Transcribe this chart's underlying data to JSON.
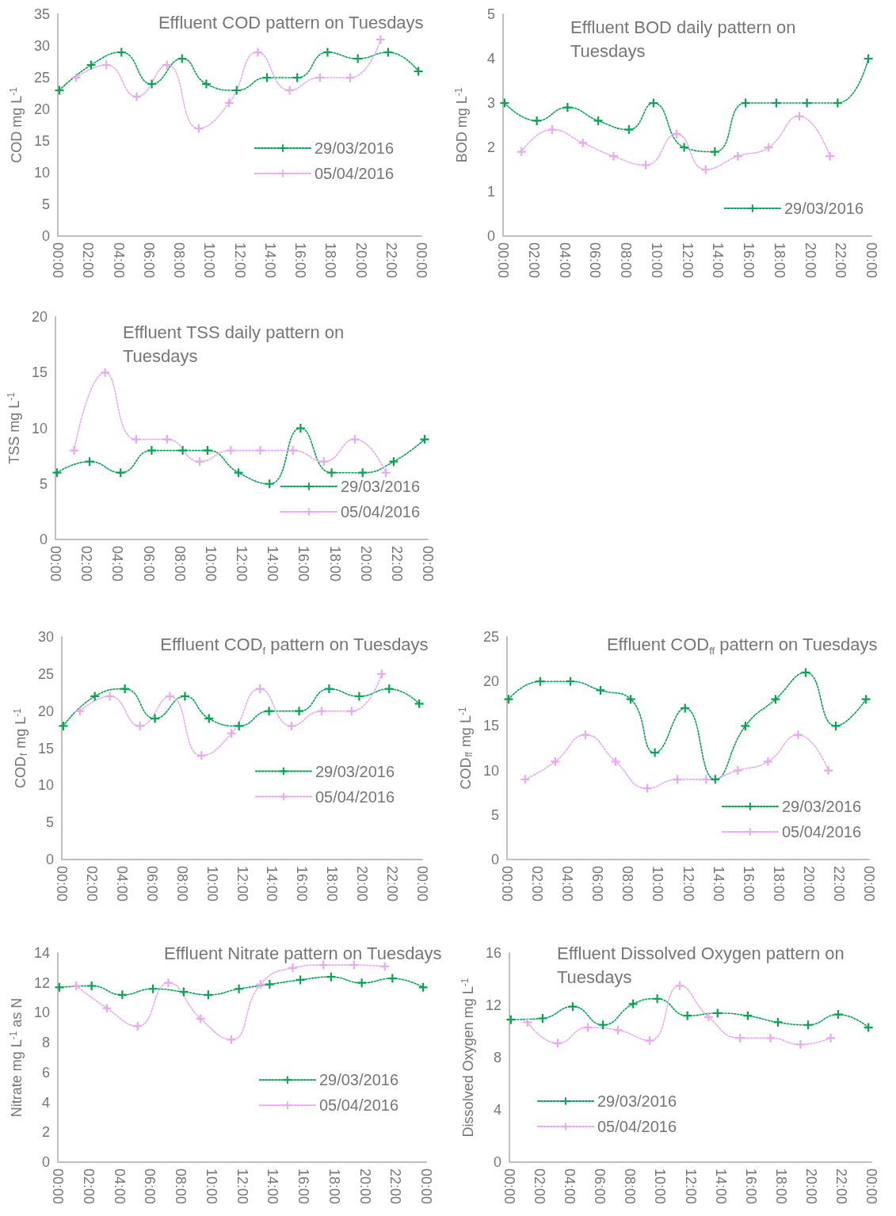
{
  "chart_data": [
    {
      "type": "line",
      "title": "Effluent COD pattern on Tuesdays",
      "ylabel": "COD mg L$^{-1}$",
      "xlim": [
        0,
        24
      ],
      "xticks": [
        {
          "value": 0,
          "label": "00:00"
        },
        {
          "value": 2,
          "label": "02:00"
        },
        {
          "value": 4,
          "label": "04:00"
        },
        {
          "value": 6,
          "label": "06:00"
        },
        {
          "value": 8,
          "label": "08:00"
        },
        {
          "value": 10,
          "label": "10:00"
        },
        {
          "value": 12,
          "label": "12:00"
        },
        {
          "value": 14,
          "label": "14:00"
        },
        {
          "value": 16,
          "label": "16:00"
        },
        {
          "value": 18,
          "label": "18:00"
        },
        {
          "value": 20,
          "label": "20:00"
        },
        {
          "value": 22,
          "label": "22:00"
        },
        {
          "value": 24,
          "label": "00:00"
        }
      ],
      "ylim": [
        0,
        35
      ],
      "yticks": [
        0,
        5,
        10,
        15,
        20,
        25,
        30,
        35
      ],
      "grid": false,
      "legend": "right",
      "marker": "cross",
      "line_style": "dotted",
      "series": [
        {
          "name": "29/03/2016",
          "color": "#00a650",
          "x": [
            0.1,
            2.2,
            4.2,
            6.2,
            8.2,
            9.8,
            11.8,
            13.8,
            15.8,
            17.8,
            19.8,
            21.8,
            23.8
          ],
          "values": [
            23,
            27,
            29,
            24,
            28,
            24,
            23,
            25,
            25,
            29,
            28,
            29,
            26
          ]
        },
        {
          "name": "05/04/2016",
          "color": "#eaa8f2",
          "x": [
            1.2,
            3.2,
            5.2,
            7.2,
            9.3,
            11.3,
            13.2,
            15.3,
            17.3,
            19.3,
            21.3
          ],
          "values": [
            25,
            27,
            22,
            27,
            17,
            21,
            29,
            23,
            25,
            25,
            31
          ]
        }
      ]
    },
    {
      "type": "line",
      "title": "Effluent BOD daily pattern on Tuesdays",
      "ylabel": "BOD mg L$^{-1}$",
      "xlim": [
        0,
        24
      ],
      "xticks": [
        {
          "value": 0,
          "label": "00:00"
        },
        {
          "value": 2,
          "label": "02:00"
        },
        {
          "value": 4,
          "label": "04:00"
        },
        {
          "value": 6,
          "label": "06:00"
        },
        {
          "value": 8,
          "label": "08:00"
        },
        {
          "value": 10,
          "label": "10:00"
        },
        {
          "value": 12,
          "label": "12:00"
        },
        {
          "value": 14,
          "label": "14:00"
        },
        {
          "value": 16,
          "label": "16:00"
        },
        {
          "value": 18,
          "label": "18:00"
        },
        {
          "value": 20,
          "label": "20:00"
        },
        {
          "value": 22,
          "label": "22:00"
        },
        {
          "value": 24,
          "label": "00:00"
        }
      ],
      "ylim": [
        0,
        5
      ],
      "yticks": [
        0,
        1,
        2,
        3,
        4,
        5
      ],
      "grid": false,
      "legend": "bottom right",
      "marker": "cross",
      "line_style": "dotted",
      "series": [
        {
          "name": "29/03/2016",
          "color": "#00a650",
          "x": [
            0.1,
            2.2,
            4.2,
            6.2,
            8.2,
            9.8,
            11.8,
            13.8,
            15.8,
            17.8,
            19.8,
            21.8,
            23.8
          ],
          "values": [
            3,
            2.6,
            2.9,
            2.6,
            2.4,
            3,
            2,
            1.9,
            3,
            3,
            3,
            3,
            4
          ]
        },
        {
          "color": "#eaa8f2",
          "x": [
            1.2,
            3.2,
            5.2,
            7.2,
            9.3,
            11.3,
            13.2,
            15.3,
            17.3,
            19.3,
            21.3
          ],
          "values": [
            1.9,
            2.4,
            2.1,
            1.8,
            1.6,
            2.3,
            1.5,
            1.8,
            2,
            2.7,
            1.8
          ]
        }
      ]
    },
    {
      "type": "line",
      "title": "Effluent TSS daily pattern on Tuesdays",
      "ylabel": "TSS mg L$^{-1}$",
      "xlim": [
        0,
        24
      ],
      "xticks": [
        {
          "value": 0,
          "label": "00:00"
        },
        {
          "value": 2,
          "label": "02:00"
        },
        {
          "value": 4,
          "label": "04:00"
        },
        {
          "value": 6,
          "label": "06:00"
        },
        {
          "value": 8,
          "label": "08:00"
        },
        {
          "value": 10,
          "label": "10:00"
        },
        {
          "value": 12,
          "label": "12:00"
        },
        {
          "value": 14,
          "label": "14:00"
        },
        {
          "value": 16,
          "label": "16:00"
        },
        {
          "value": 18,
          "label": "18:00"
        },
        {
          "value": 20,
          "label": "20:00"
        },
        {
          "value": 22,
          "label": "22:00"
        },
        {
          "value": 24,
          "label": "00:00"
        }
      ],
      "ylim": [
        0,
        20
      ],
      "yticks": [
        0,
        5,
        10,
        15,
        20
      ],
      "grid": false,
      "legend": "bottom right",
      "marker": "cross",
      "line_style": "dotted",
      "series": [
        {
          "name": "29/03/2016",
          "color": "#00a650",
          "x": [
            0.1,
            2.2,
            4.2,
            6.2,
            8.2,
            9.8,
            11.8,
            13.8,
            15.8,
            17.8,
            19.8,
            21.8,
            23.8
          ],
          "values": [
            6,
            7,
            6,
            8,
            8,
            8,
            6,
            5,
            10,
            6,
            6,
            7,
            9
          ]
        },
        {
          "name": "05/04/2016",
          "color": "#eaa8f2",
          "x": [
            1.2,
            3.2,
            5.2,
            7.2,
            9.3,
            11.3,
            13.2,
            15.3,
            17.3,
            19.3,
            21.3
          ],
          "values": [
            8,
            15,
            9,
            9,
            7,
            8,
            8,
            8,
            7,
            9,
            6
          ]
        }
      ]
    },
    {
      "type": "line",
      "title": "Effluent COD$_{f}$ pattern on Tuesdays",
      "ylabel": "COD$_{f}$ mg L$^{-1}$",
      "xlim": [
        0,
        24
      ],
      "xticks": [
        {
          "value": 0,
          "label": "00:00"
        },
        {
          "value": 2,
          "label": "02:00"
        },
        {
          "value": 4,
          "label": "04:00"
        },
        {
          "value": 6,
          "label": "06:00"
        },
        {
          "value": 8,
          "label": "08:00"
        },
        {
          "value": 10,
          "label": "10:00"
        },
        {
          "value": 12,
          "label": "12:00"
        },
        {
          "value": 14,
          "label": "14:00"
        },
        {
          "value": 16,
          "label": "16:00"
        },
        {
          "value": 18,
          "label": "18:00"
        },
        {
          "value": 20,
          "label": "20:00"
        },
        {
          "value": 22,
          "label": "22:00"
        },
        {
          "value": 24,
          "label": "00:00"
        }
      ],
      "ylim": [
        0,
        30
      ],
      "yticks": [
        0,
        5,
        10,
        15,
        20,
        25,
        30
      ],
      "grid": false,
      "legend": "right",
      "marker": "cross",
      "line_style": "dotted",
      "series": [
        {
          "name": "29/03/2016",
          "color": "#00a650",
          "x": [
            0.1,
            2.2,
            4.2,
            6.2,
            8.2,
            9.8,
            11.8,
            13.8,
            15.8,
            17.8,
            19.8,
            21.8,
            23.8
          ],
          "values": [
            18,
            22,
            23,
            19,
            22,
            19,
            18,
            20,
            20,
            23,
            22,
            23,
            21
          ]
        },
        {
          "name": "05/04/2016",
          "color": "#eaa8f2",
          "x": [
            1.2,
            3.2,
            5.2,
            7.2,
            9.3,
            11.3,
            13.2,
            15.3,
            17.3,
            19.3,
            21.3
          ],
          "values": [
            20,
            22,
            18,
            22,
            14,
            17,
            23,
            18,
            20,
            20,
            25
          ]
        }
      ]
    },
    {
      "type": "line",
      "title": "Effluent COD$_{ff}$ pattern on Tuesdays",
      "ylabel": "COD$_{ff}$ mg L$^{-1}$",
      "xlim": [
        0,
        24
      ],
      "xticks": [
        {
          "value": 0,
          "label": "00:00"
        },
        {
          "value": 2,
          "label": "02:00"
        },
        {
          "value": 4,
          "label": "04:00"
        },
        {
          "value": 6,
          "label": "06:00"
        },
        {
          "value": 8,
          "label": "08:00"
        },
        {
          "value": 10,
          "label": "10:00"
        },
        {
          "value": 12,
          "label": "12:00"
        },
        {
          "value": 14,
          "label": "14:00"
        },
        {
          "value": 16,
          "label": "16:00"
        },
        {
          "value": 18,
          "label": "18:00"
        },
        {
          "value": 20,
          "label": "20:00"
        },
        {
          "value": 22,
          "label": "22:00"
        },
        {
          "value": 24,
          "label": "00:00"
        }
      ],
      "ylim": [
        0,
        25
      ],
      "yticks": [
        0,
        5,
        10,
        15,
        20,
        25
      ],
      "grid": false,
      "legend": "bottom right",
      "marker": "cross",
      "line_style": "dotted",
      "series": [
        {
          "name": "29/03/2016",
          "color": "#00a650",
          "x": [
            0.1,
            2.2,
            4.2,
            6.2,
            8.2,
            9.8,
            11.8,
            13.8,
            15.8,
            17.8,
            19.8,
            21.8,
            23.8
          ],
          "values": [
            18,
            20,
            20,
            19,
            18,
            12,
            17,
            9,
            15,
            18,
            21,
            15,
            18
          ]
        },
        {
          "name": "05/04/2016",
          "color": "#eaa8f2",
          "x": [
            1.2,
            3.2,
            5.2,
            7.2,
            9.3,
            11.3,
            13.2,
            15.3,
            17.3,
            19.3,
            21.3
          ],
          "values": [
            9,
            11,
            14,
            11,
            8,
            9,
            9,
            10,
            11,
            14,
            10
          ]
        }
      ]
    },
    {
      "type": "line",
      "title": "Effluent Nitrate pattern on Tuesdays",
      "ylabel": "Nitrate mg L$^{-1}$ as N",
      "xlim": [
        0,
        24
      ],
      "xticks": [
        {
          "value": 0,
          "label": "00:00"
        },
        {
          "value": 2,
          "label": "02:00"
        },
        {
          "value": 4,
          "label": "04:00"
        },
        {
          "value": 6,
          "label": "06:00"
        },
        {
          "value": 8,
          "label": "08:00"
        },
        {
          "value": 10,
          "label": "10:00"
        },
        {
          "value": 12,
          "label": "12:00"
        },
        {
          "value": 14,
          "label": "14:00"
        },
        {
          "value": 16,
          "label": "16:00"
        },
        {
          "value": 18,
          "label": "18:00"
        },
        {
          "value": 20,
          "label": "20:00"
        },
        {
          "value": 22,
          "label": "22:00"
        },
        {
          "value": 24,
          "label": "00:00"
        }
      ],
      "ylim": [
        0,
        14
      ],
      "yticks": [
        0,
        2,
        4,
        6,
        8,
        10,
        12,
        14
      ],
      "grid": false,
      "legend": "right",
      "marker": "cross",
      "line_style": "dotted",
      "series": [
        {
          "name": "29/03/2016",
          "color": "#00a650",
          "x": [
            0.1,
            2.2,
            4.2,
            6.2,
            8.2,
            9.8,
            11.8,
            13.8,
            15.8,
            17.8,
            19.8,
            21.8,
            23.8
          ],
          "values": [
            11.7,
            11.8,
            11.2,
            11.6,
            11.4,
            11.2,
            11.6,
            11.9,
            12.2,
            12.4,
            12.0,
            12.3,
            11.7
          ]
        },
        {
          "name": "05/04/2016",
          "color": "#eaa8f2",
          "x": [
            1.2,
            3.2,
            5.2,
            7.2,
            9.3,
            11.3,
            13.2,
            15.3,
            17.3,
            19.3,
            21.3
          ],
          "values": [
            11.8,
            10.3,
            9.1,
            12.0,
            9.6,
            8.2,
            11.9,
            13.0,
            13.2,
            13.2,
            13.1
          ]
        }
      ]
    },
    {
      "type": "line",
      "title": "Effluent Dissolved Oxygen pattern on Tuesdays",
      "ylabel": "Dissolved Oxygen mg L$^{-1}$",
      "xlim": [
        0,
        24
      ],
      "xticks": [
        {
          "value": 0,
          "label": "00:00"
        },
        {
          "value": 2,
          "label": "02:00"
        },
        {
          "value": 4,
          "label": "04:00"
        },
        {
          "value": 6,
          "label": "06:00"
        },
        {
          "value": 8,
          "label": "08:00"
        },
        {
          "value": 10,
          "label": "10:00"
        },
        {
          "value": 12,
          "label": "12:00"
        },
        {
          "value": 14,
          "label": "14:00"
        },
        {
          "value": 16,
          "label": "16:00"
        },
        {
          "value": 18,
          "label": "18:00"
        },
        {
          "value": 20,
          "label": "20:00"
        },
        {
          "value": 22,
          "label": "22:00"
        },
        {
          "value": 24,
          "label": "00:00"
        }
      ],
      "ylim": [
        0,
        16
      ],
      "yticks": [
        0,
        4,
        8,
        12,
        16
      ],
      "grid": false,
      "legend": "bottom left",
      "marker": "cross",
      "line_style": "dotted",
      "series": [
        {
          "name": "29/03/2016",
          "color": "#00a650",
          "x": [
            0.1,
            2.2,
            4.2,
            6.2,
            8.2,
            9.8,
            11.8,
            13.8,
            15.8,
            17.8,
            19.8,
            21.8,
            23.8
          ],
          "values": [
            10.9,
            11.0,
            11.9,
            10.5,
            12.1,
            12.5,
            11.2,
            11.4,
            11.2,
            10.7,
            10.5,
            11.3,
            10.3
          ]
        },
        {
          "name": "05/04/2016",
          "color": "#eaa8f2",
          "x": [
            1.2,
            3.2,
            5.2,
            7.2,
            9.3,
            11.3,
            13.2,
            15.3,
            17.3,
            19.3,
            21.3
          ],
          "values": [
            10.7,
            9.1,
            10.3,
            10.1,
            9.3,
            13.5,
            11.1,
            9.5,
            9.5,
            9.0,
            9.5
          ]
        }
      ]
    }
  ]
}
